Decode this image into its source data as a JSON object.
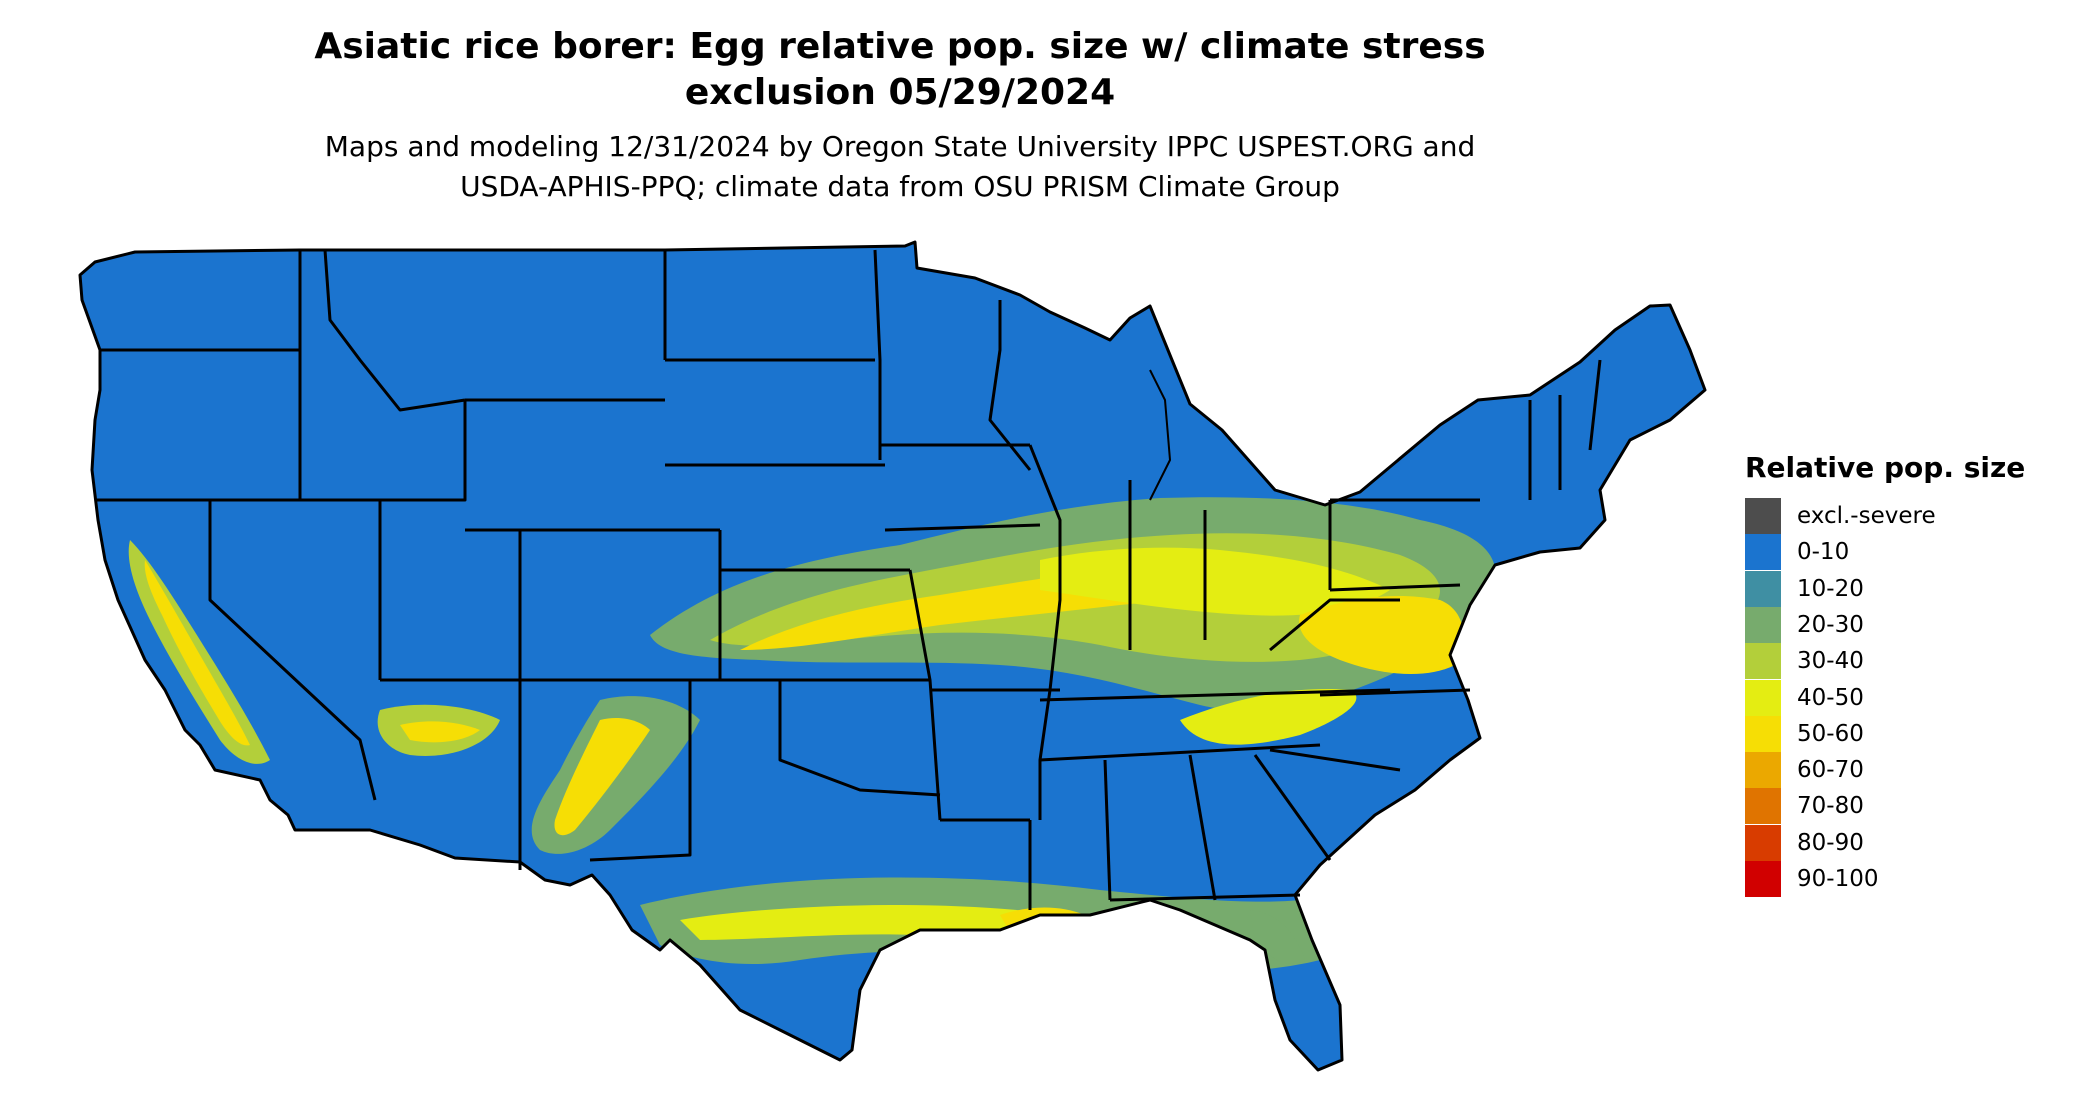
{
  "title": {
    "line1": "Asiatic rice borer: Egg relative pop. size w/ climate stress",
    "line2": "exclusion 05/29/2024"
  },
  "subtitle": {
    "line1": "Maps and modeling 12/31/2024 by Oregon State University IPPC USPEST.ORG and",
    "line2": "USDA-APHIS-PPQ; climate data from OSU PRISM Climate Group"
  },
  "legend": {
    "title": "Relative pop. size",
    "items": [
      {
        "label": "excl.-severe",
        "color": "#4d4d4d"
      },
      {
        "label": "0-10",
        "color": "#1b74cf"
      },
      {
        "label": "10-20",
        "color": "#3f8fa3"
      },
      {
        "label": "20-30",
        "color": "#77ab6d"
      },
      {
        "label": "30-40",
        "color": "#b3cf3a"
      },
      {
        "label": "40-50",
        "color": "#e4ed12"
      },
      {
        "label": "50-60",
        "color": "#f6de05"
      },
      {
        "label": "60-70",
        "color": "#eba800"
      },
      {
        "label": "70-80",
        "color": "#e07400"
      },
      {
        "label": "80-90",
        "color": "#d83c00"
      },
      {
        "label": "90-100",
        "color": "#d10000"
      }
    ]
  },
  "map": {
    "region": "contiguous-united-states",
    "base_color": "#1b74cf",
    "border_color": "#000000"
  }
}
